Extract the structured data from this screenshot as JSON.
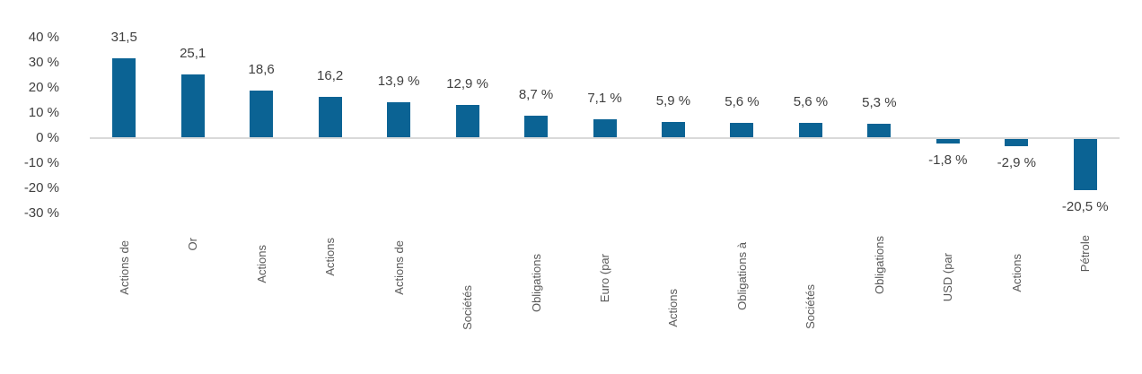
{
  "chart_data": {
    "type": "bar",
    "title": "",
    "xlabel": "",
    "ylabel": "",
    "categories": [
      "Actions de",
      "Or",
      "Actions",
      "Actions",
      "Actions de",
      "Sociétés",
      "Obligations",
      "Euro (par",
      "Actions",
      "Obligations à",
      "Sociétés",
      "Obligations",
      "USD (par",
      "Actions",
      "Pétrole"
    ],
    "values": [
      31.5,
      25.1,
      18.6,
      16.2,
      13.9,
      12.9,
      8.7,
      7.1,
      5.9,
      5.6,
      5.6,
      5.3,
      -1.8,
      -2.9,
      -20.5
    ],
    "value_labels": [
      "31,5",
      "25,1",
      "18,6",
      "16,2",
      "13,9 %",
      "12,9 %",
      "8,7 %",
      "7,1 %",
      "5,9 %",
      "5,6 %",
      "5,6 %",
      "5,3 %",
      "-1,8 %",
      "-2,9 %",
      "-20,5 %"
    ],
    "y_axis": {
      "tick_values": [
        40,
        30,
        20,
        10,
        0,
        -10,
        -20,
        -30
      ],
      "tick_labels": [
        "40 %",
        "30 %",
        "20 %",
        "10 %",
        "0 %",
        "-10 %",
        "-20 %",
        "-30 %"
      ],
      "range": [
        -30,
        40
      ]
    },
    "grid": "none",
    "legend": "none",
    "colors": {
      "bar": "#0B6394",
      "zero_line": "#D9D9D9",
      "value_label": "#404040",
      "axis_label": "#404040",
      "category_label": "#595959",
      "background": "#FFFFFF"
    }
  }
}
